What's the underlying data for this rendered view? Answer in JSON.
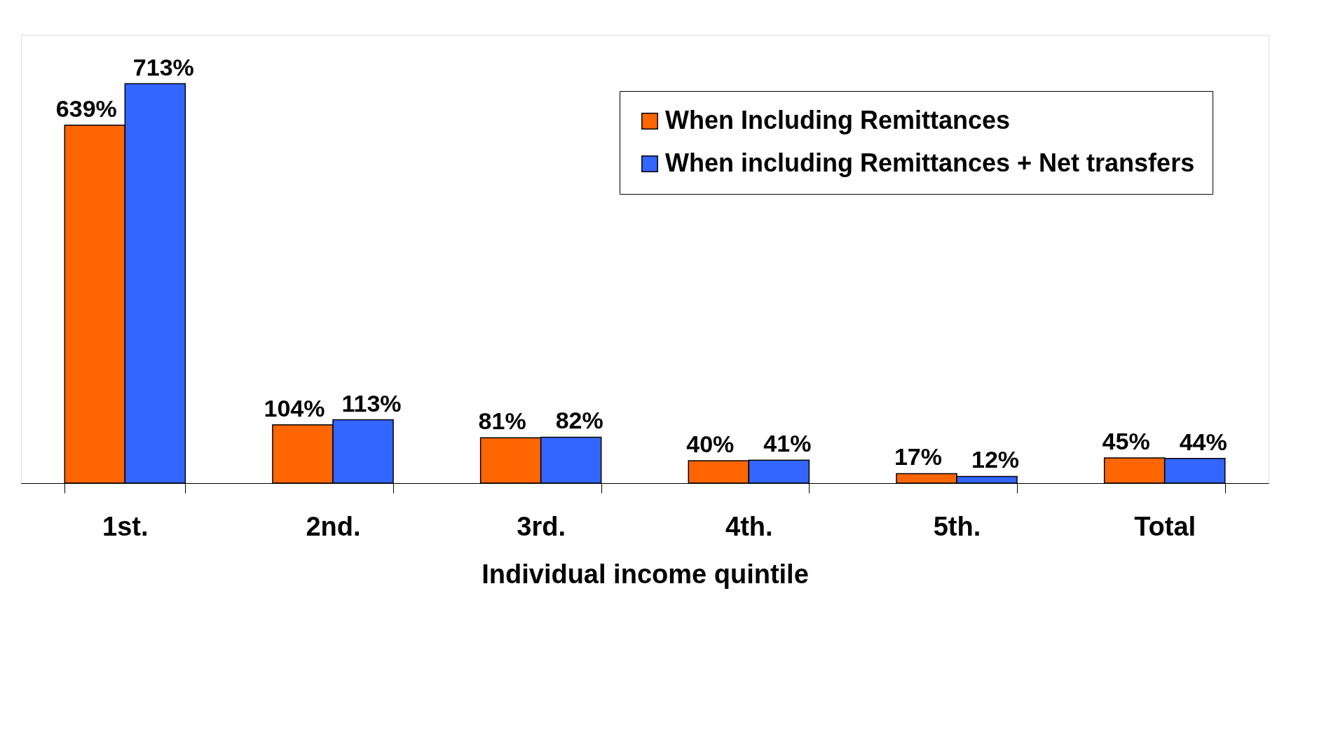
{
  "chart_data": {
    "type": "bar",
    "xlabel": "Individual income quintile",
    "categories": [
      "1st.",
      "2nd.",
      "3rd.",
      "4th.",
      "5th.",
      "Total"
    ],
    "series": [
      {
        "name": "When Including Remittances",
        "color": "#ff6600",
        "values": [
          639,
          104,
          81,
          40,
          17,
          45
        ],
        "value_labels": [
          "639%",
          "104%",
          "81%",
          "40%",
          "17%",
          "45%"
        ]
      },
      {
        "name": "When including Remittances + Net transfers",
        "color": "#3366ff",
        "values": [
          713,
          113,
          82,
          41,
          12,
          44
        ],
        "value_labels": [
          "713%",
          "113%",
          "82%",
          "41%",
          "12%",
          "44%"
        ]
      }
    ],
    "legend": "top right",
    "grid": false
  }
}
